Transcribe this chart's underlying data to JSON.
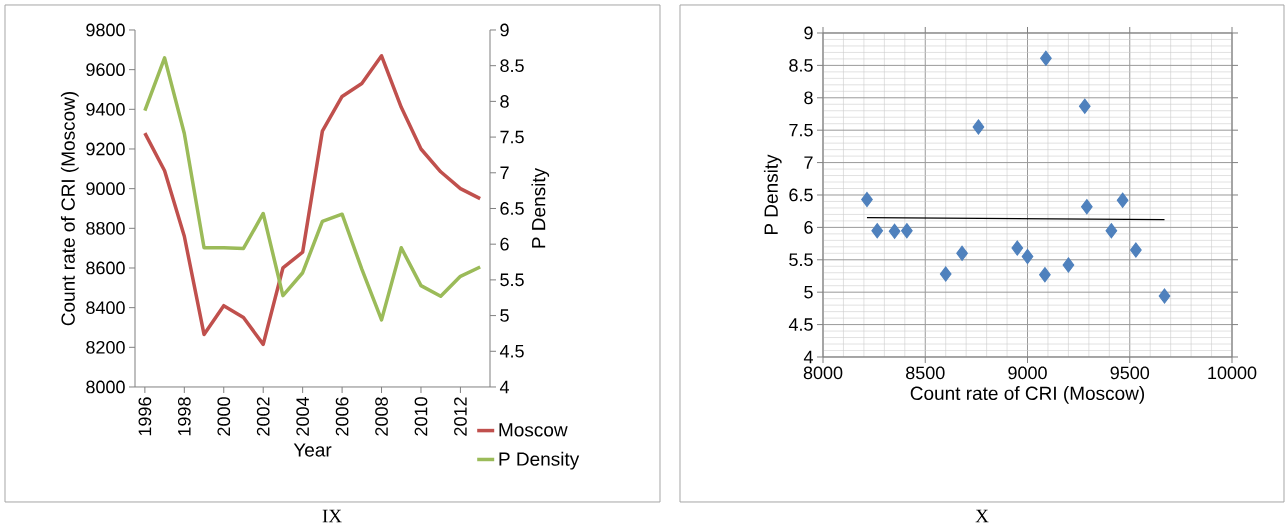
{
  "chart_data": [
    {
      "type": "line",
      "xlabel": "Year",
      "ylabel": "Count rate of CRI (Moscow)",
      "y2label": "P Density",
      "annotations": [
        "IX"
      ],
      "x": [
        1996,
        1997,
        1998,
        1999,
        2000,
        2001,
        2002,
        2003,
        2004,
        2005,
        2006,
        2007,
        2008,
        2009,
        2010,
        2011,
        2012,
        2013
      ],
      "xlim": [
        1995.5,
        2013.5
      ],
      "xticks": [
        1996,
        1998,
        2000,
        2002,
        2004,
        2006,
        2008,
        2010,
        2012
      ],
      "ylim": [
        8000,
        9800
      ],
      "yticks": [
        8000,
        8200,
        8400,
        8600,
        8800,
        9000,
        9200,
        9400,
        9600,
        9800
      ],
      "y2lim": [
        4,
        9
      ],
      "y2ticks": [
        4,
        4.5,
        5,
        5.5,
        6,
        6.5,
        7,
        7.5,
        8,
        8.5,
        9
      ],
      "legend": "bottom right",
      "marker": "none",
      "series": [
        {
          "name": "Moscow",
          "color": "#c0504d",
          "values": [
            9280,
            9090,
            8760,
            8265,
            8410,
            8350,
            8215,
            8600,
            8680,
            9290,
            9465,
            9530,
            9670,
            9410,
            9200,
            9085,
            9000,
            8950
          ]
        },
        {
          "name": "P Density",
          "color": "#9bbb59",
          "axis": "y2",
          "values": [
            7.87,
            8.61,
            7.55,
            5.95,
            5.95,
            5.94,
            6.43,
            5.28,
            5.6,
            6.32,
            6.42,
            5.65,
            4.94,
            5.95,
            5.42,
            5.27,
            5.55,
            5.68
          ]
        }
      ]
    },
    {
      "type": "scatter",
      "xlabel": "Count rate of CRI (Moscow)",
      "ylabel": "P Density",
      "annotations": [
        "X"
      ],
      "xlim": [
        8000,
        10000
      ],
      "xticks": [
        8000,
        8500,
        9000,
        9500,
        10000
      ],
      "ylim": [
        4,
        9
      ],
      "yticks": [
        4,
        4.5,
        5,
        5.5,
        6,
        6.5,
        7,
        7.5,
        8,
        8.5,
        9
      ],
      "grid": true,
      "marker": "diamond",
      "series": [
        {
          "color": "#4f81bd",
          "x": [
            9280,
            9090,
            8760,
            8265,
            8410,
            8350,
            8215,
            8600,
            8680,
            9290,
            9465,
            9530,
            9670,
            9410,
            9200,
            9085,
            9000,
            8950
          ],
          "values": [
            7.87,
            8.61,
            7.55,
            5.95,
            5.95,
            5.94,
            6.43,
            5.28,
            5.6,
            6.32,
            6.42,
            5.65,
            4.94,
            5.95,
            5.42,
            5.27,
            5.55,
            5.68
          ]
        },
        {
          "type": "line",
          "color": "#000000",
          "marker": "none",
          "x": [
            8215,
            9670
          ],
          "values": [
            6.15,
            6.12
          ]
        }
      ]
    }
  ]
}
